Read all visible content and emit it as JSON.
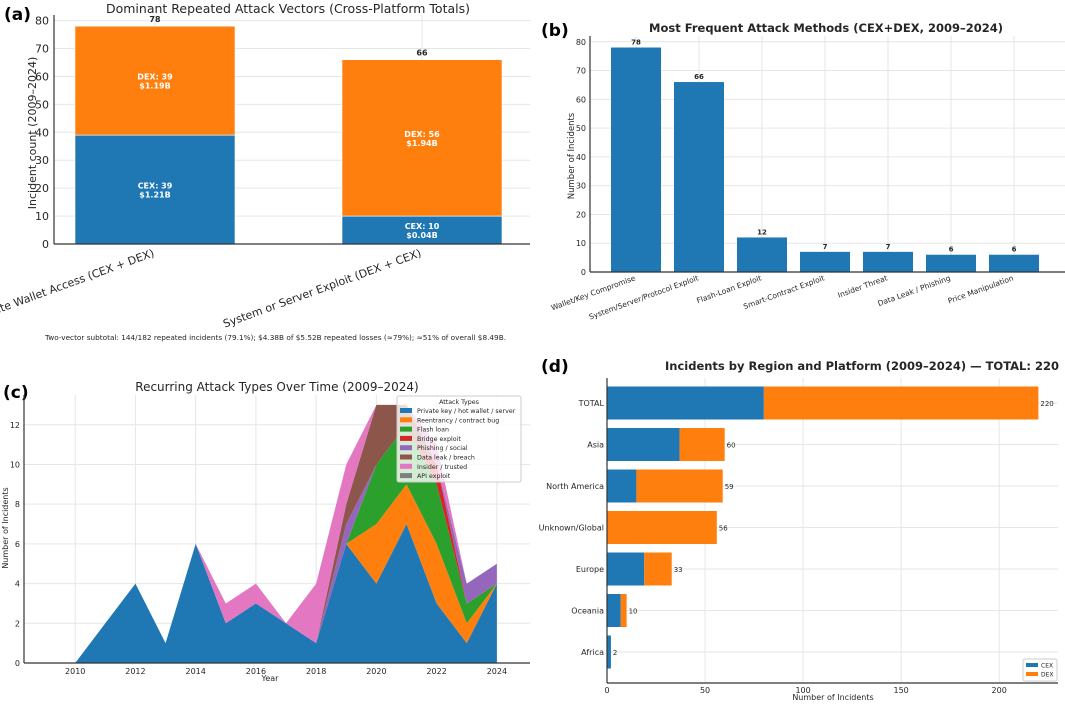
{
  "colors": {
    "cex": "#1f77b4",
    "dex": "#ff7f0e",
    "green": "#2ca02c",
    "red": "#d62728",
    "purple": "#9467bd",
    "brown": "#8c564b",
    "pink": "#e377c2",
    "gray": "#7f7f7f"
  },
  "chart_data": [
    {
      "panel": "(a)",
      "type": "bar",
      "stacked": true,
      "title": "Dominant Repeated Attack Vectors (Cross-Platform Totals)",
      "xlabel": "",
      "ylabel": "Incident count (2009–2024)",
      "ylim": [
        0,
        82
      ],
      "yticks": [
        0,
        10,
        20,
        30,
        40,
        50,
        60,
        70,
        80
      ],
      "categories": [
        "Private Wallet Access (CEX + DEX)",
        "System or Server Exploit (DEX + CEX)"
      ],
      "series": [
        {
          "name": "CEX",
          "values": [
            39,
            10
          ],
          "labels": [
            "CEX: 39|$1.21B",
            "CEX: 10|$0.04B"
          ]
        },
        {
          "name": "DEX",
          "values": [
            39,
            56
          ],
          "labels": [
            "DEX: 39|$1.19B",
            "DEX: 56|$1.94B"
          ]
        }
      ],
      "totals": [
        "78",
        "66"
      ],
      "footnote": "Two-vector subtotal: 144/182 repeated incidents (79.1%); $4.38B of $5.52B repeated losses (≈79%); ≈51% of overall $8.49B."
    },
    {
      "panel": "(b)",
      "type": "bar",
      "title": "Most Frequent Attack Methods (CEX+DEX, 2009–2024)",
      "xlabel": "",
      "ylabel": "Number of Incidents",
      "ylim": [
        0,
        82
      ],
      "yticks": [
        0,
        10,
        20,
        30,
        40,
        50,
        60,
        70,
        80
      ],
      "categories": [
        "Wallet/Key Compromise",
        "System/Server/Protocol Exploit",
        "Flash-Loan Exploit",
        "Smart-Contract Exploit",
        "Insider Threat",
        "Data Leak / Phishing",
        "Price Manipulation"
      ],
      "values": [
        78,
        66,
        12,
        7,
        7,
        6,
        6
      ],
      "value_labels": [
        "78",
        "66",
        "12",
        "7",
        "7",
        "6",
        "6"
      ]
    },
    {
      "panel": "(c)",
      "type": "area",
      "stacked": true,
      "title": "Recurring Attack Types Over Time (2009–2024)",
      "xlabel": "Year",
      "ylabel": "Number of Incidents",
      "xlim": [
        2008.3,
        2025.1
      ],
      "ylim": [
        0,
        13.5
      ],
      "xticks": [
        2010,
        2012,
        2014,
        2016,
        2018,
        2020,
        2022,
        2024
      ],
      "yticks": [
        0,
        2,
        4,
        6,
        8,
        10,
        12
      ],
      "legend_title": "Attack Types",
      "legend_position": "top-right",
      "x": [
        2010,
        2011,
        2012,
        2013,
        2014,
        2015,
        2016,
        2017,
        2018,
        2019,
        2020,
        2021,
        2022,
        2023,
        2024
      ],
      "series": [
        {
          "name": "Private key / hot wallet / server",
          "color": "#1f77b4",
          "values": [
            0,
            2,
            4,
            1,
            6,
            2,
            3,
            2,
            1,
            6,
            4,
            7,
            3,
            1,
            4
          ]
        },
        {
          "name": "Reentrancy / contract bug",
          "color": "#ff7f0e",
          "values": [
            0,
            0,
            0,
            0,
            0,
            0,
            0,
            0,
            0,
            0,
            3,
            2,
            3,
            1,
            0
          ]
        },
        {
          "name": "Flash loan",
          "color": "#2ca02c",
          "values": [
            0,
            0,
            0,
            0,
            0,
            0,
            0,
            0,
            0,
            0,
            3,
            3,
            3,
            1,
            0
          ]
        },
        {
          "name": "Bridge exploit",
          "color": "#d62728",
          "values": [
            0,
            0,
            0,
            0,
            0,
            0,
            0,
            0,
            0,
            0,
            0,
            0,
            1,
            0,
            0
          ]
        },
        {
          "name": "Phishing / social",
          "color": "#9467bd",
          "values": [
            0,
            0,
            0,
            0,
            0,
            0,
            0,
            0,
            0,
            1,
            0,
            0,
            0,
            1,
            1
          ]
        },
        {
          "name": "Data leak / breach",
          "color": "#8c564b",
          "values": [
            0,
            0,
            0,
            0,
            0,
            0,
            0,
            0,
            0,
            1,
            3,
            1,
            0,
            0,
            0
          ]
        },
        {
          "name": "Insider / trusted",
          "color": "#e377c2",
          "values": [
            0,
            0,
            0,
            0,
            0,
            1,
            1,
            0,
            3,
            2,
            0,
            0,
            1,
            0,
            0
          ]
        },
        {
          "name": "API exploit",
          "color": "#7f7f7f",
          "values": [
            0,
            0,
            0,
            0,
            0,
            0,
            0,
            0,
            0,
            0,
            0,
            0,
            0,
            0,
            0
          ]
        }
      ]
    },
    {
      "panel": "(d)",
      "type": "bar",
      "orientation": "horizontal",
      "stacked": true,
      "title": "Incidents by Region and Platform (2009–2024) — TOTAL: 220",
      "xlabel": "Number of Incidents",
      "ylabel": "",
      "xlim": [
        0,
        230
      ],
      "xticks": [
        0,
        50,
        100,
        150,
        200
      ],
      "legend_position": "bottom-right",
      "categories": [
        "TOTAL",
        "Asia",
        "North America",
        "Unknown/Global",
        "Europe",
        "Oceania",
        "Africa"
      ],
      "series": [
        {
          "name": "CEX",
          "values": [
            80,
            37,
            15,
            0,
            19,
            7,
            2
          ]
        },
        {
          "name": "DEX",
          "values": [
            140,
            23,
            44,
            56,
            14,
            3,
            0
          ]
        }
      ],
      "totals": [
        "220",
        "60",
        "59",
        "56",
        "33",
        "10",
        "2"
      ]
    }
  ]
}
